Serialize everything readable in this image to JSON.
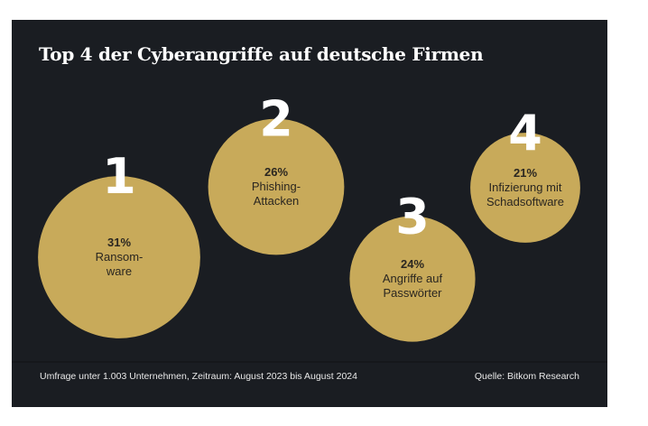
{
  "title": "Top 4 der Cyberangriffe auf deutsche Firmen",
  "footer": {
    "note": "Umfrage unter 1.003 Unternehmen, Zeitraum: August 2023 bis August 2024",
    "source": "Quelle: Bitkom Research"
  },
  "colors": {
    "background": "#1a1d22",
    "bubble": "#c8aa5a",
    "rank": "#ffffff",
    "label": "#2a2620"
  },
  "chart_data": {
    "type": "bubble",
    "unit": "%",
    "items": [
      {
        "rank": "1",
        "value": 31,
        "value_label": "31%",
        "label_lines": [
          "Ransom-",
          "ware"
        ]
      },
      {
        "rank": "2",
        "value": 26,
        "value_label": "26%",
        "label_lines": [
          "Phishing-",
          "Attacken"
        ]
      },
      {
        "rank": "3",
        "value": 24,
        "value_label": "24%",
        "label_lines": [
          "Angriffe auf",
          "Passwörter"
        ]
      },
      {
        "rank": "4",
        "value": 21,
        "value_label": "21%",
        "label_lines": [
          "Infizierung mit",
          "Schadsoftware"
        ]
      }
    ]
  }
}
